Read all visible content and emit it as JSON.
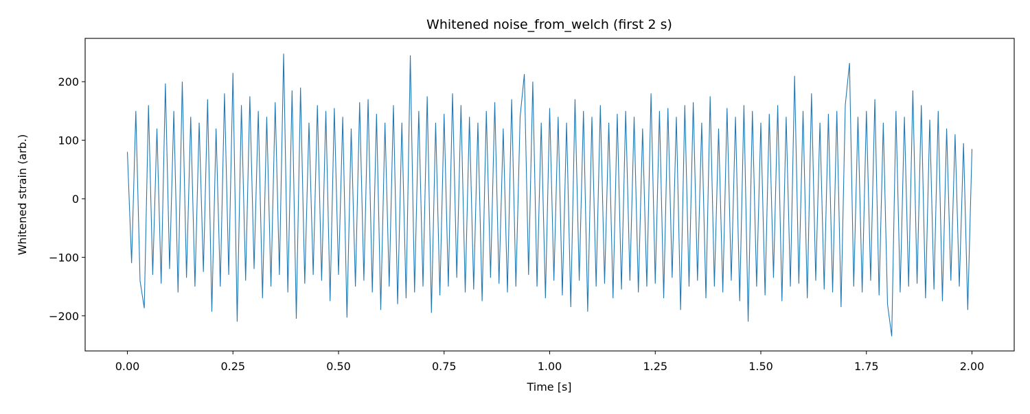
{
  "chart_data": {
    "type": "line",
    "title": "Whitened noise_from_welch (first 2 s)",
    "x_label": "Time [s]",
    "y_label": "Whitened strain (arb.)",
    "xlim": [
      -0.1,
      2.1
    ],
    "ylim": [
      -260,
      274
    ],
    "xticks": [
      {
        "value": 0,
        "label": "0.00"
      },
      {
        "value": 0.25,
        "label": "0.25"
      },
      {
        "value": 0.5,
        "label": "0.50"
      },
      {
        "value": 0.75,
        "label": "0.75"
      },
      {
        "value": 1,
        "label": "1.00"
      },
      {
        "value": 1.25,
        "label": "1.25"
      },
      {
        "value": 1.5,
        "label": "1.50"
      },
      {
        "value": 1.75,
        "label": "1.75"
      },
      {
        "value": 2,
        "label": "2.00"
      }
    ],
    "yticks": [
      {
        "value": -200,
        "label": "−200"
      },
      {
        "value": -100,
        "label": "−100"
      },
      0,
      100,
      200
    ],
    "x": [
      0,
      0.01,
      0.02,
      0.03,
      0.04,
      0.05,
      0.06,
      0.07,
      0.08,
      0.09,
      0.1,
      0.11,
      0.12,
      0.13,
      0.14,
      0.15,
      0.16,
      0.17,
      0.18,
      0.19,
      0.2,
      0.21,
      0.22,
      0.23,
      0.24,
      0.25,
      0.26,
      0.27,
      0.28,
      0.29,
      0.3,
      0.31,
      0.32,
      0.33,
      0.34,
      0.35,
      0.36,
      0.37,
      0.38,
      0.39,
      0.4,
      0.41,
      0.42,
      0.43,
      0.44,
      0.45,
      0.46,
      0.47,
      0.48,
      0.49,
      0.5,
      0.51,
      0.52,
      0.53,
      0.54,
      0.55,
      0.56,
      0.57,
      0.58,
      0.59,
      0.6,
      0.61,
      0.62,
      0.63,
      0.64,
      0.65,
      0.66,
      0.67,
      0.68,
      0.69,
      0.7,
      0.71,
      0.72,
      0.73,
      0.74,
      0.75,
      0.76,
      0.77,
      0.78,
      0.79,
      0.8,
      0.81,
      0.82,
      0.83,
      0.84,
      0.85,
      0.86,
      0.87,
      0.88,
      0.89,
      0.9,
      0.91,
      0.92,
      0.93,
      0.94,
      0.95,
      0.96,
      0.97,
      0.98,
      0.99,
      1,
      1.01,
      1.02,
      1.03,
      1.04,
      1.05,
      1.06,
      1.07,
      1.08,
      1.09,
      1.1,
      1.11,
      1.12,
      1.13,
      1.14,
      1.15,
      1.16,
      1.17,
      1.18,
      1.19,
      1.2,
      1.21,
      1.22,
      1.23,
      1.24,
      1.25,
      1.26,
      1.27,
      1.28,
      1.29,
      1.3,
      1.31,
      1.32,
      1.33,
      1.34,
      1.35,
      1.36,
      1.37,
      1.38,
      1.39,
      1.4,
      1.41,
      1.42,
      1.43,
      1.44,
      1.45,
      1.46,
      1.47,
      1.48,
      1.49,
      1.5,
      1.51,
      1.52,
      1.53,
      1.54,
      1.55,
      1.56,
      1.57,
      1.58,
      1.59,
      1.6,
      1.61,
      1.62,
      1.63,
      1.64,
      1.65,
      1.66,
      1.67,
      1.68,
      1.69,
      1.7,
      1.71,
      1.72,
      1.73,
      1.74,
      1.75,
      1.76,
      1.77,
      1.78,
      1.79,
      1.8,
      1.81,
      1.82,
      1.83,
      1.84,
      1.85,
      1.86,
      1.87,
      1.88,
      1.89,
      1.9,
      1.91,
      1.92,
      1.93,
      1.94,
      1.95,
      1.96,
      1.97,
      1.98,
      1.99,
      2
    ],
    "series": [
      {
        "color": "#1f77b4",
        "values": [
          80,
          -110,
          150,
          -140,
          -187,
          160,
          -130,
          120,
          -145,
          197,
          -120,
          150,
          -160,
          200,
          -135,
          140,
          -150,
          130,
          -125,
          170,
          -193,
          120,
          -150,
          180,
          -130,
          215,
          -210,
          160,
          -140,
          175,
          -120,
          150,
          -170,
          140,
          -150,
          165,
          -130,
          248,
          -160,
          185,
          -205,
          190,
          -145,
          130,
          -130,
          160,
          -140,
          150,
          -175,
          155,
          -130,
          140,
          -203,
          120,
          -150,
          165,
          -140,
          170,
          -160,
          145,
          -190,
          130,
          -150,
          160,
          -180,
          130,
          -170,
          245,
          -160,
          150,
          -150,
          175,
          -195,
          130,
          -165,
          145,
          -150,
          180,
          -135,
          160,
          -160,
          140,
          -155,
          130,
          -175,
          150,
          -135,
          165,
          -145,
          120,
          -160,
          170,
          -150,
          140,
          213,
          -130,
          200,
          -150,
          130,
          -170,
          155,
          -140,
          140,
          -165,
          130,
          -185,
          170,
          -140,
          150,
          -193,
          140,
          -150,
          160,
          -145,
          130,
          -170,
          145,
          -155,
          150,
          -140,
          140,
          -160,
          120,
          -150,
          180,
          -145,
          150,
          -170,
          155,
          -135,
          140,
          -190,
          160,
          -150,
          165,
          -140,
          130,
          -170,
          175,
          -150,
          120,
          -160,
          155,
          -140,
          140,
          -175,
          160,
          -210,
          150,
          -150,
          130,
          -165,
          145,
          -135,
          160,
          -175,
          140,
          -150,
          210,
          -145,
          150,
          -170,
          180,
          -140,
          130,
          -155,
          145,
          -160,
          150,
          -185,
          160,
          232,
          -150,
          140,
          -160,
          150,
          -140,
          170,
          -165,
          130,
          -180,
          -235,
          150,
          -160,
          140,
          -150,
          185,
          -145,
          160,
          -170,
          135,
          -155,
          150,
          -175,
          120,
          -140,
          110,
          -150,
          95,
          -190,
          85
        ]
      }
    ]
  }
}
